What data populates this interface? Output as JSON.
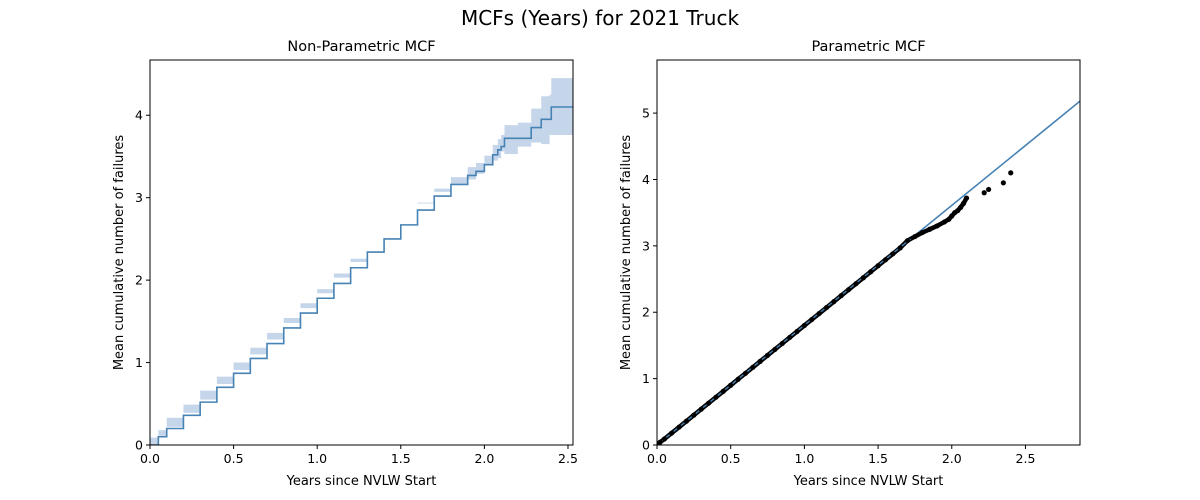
{
  "suptitle": "MCFs (Years) for 2021 Truck",
  "colors": {
    "line": "#4682b4",
    "band": "#c6d6ea",
    "points": "#000000"
  },
  "chart_data": [
    {
      "type": "line",
      "title": "Non-Parametric MCF",
      "xlabel": "Years since NVLW Start",
      "ylabel": "Mean cumulative number of failures",
      "xlim": [
        0,
        2.53
      ],
      "ylim": [
        0,
        4.67
      ],
      "xticks": [
        0.0,
        0.5,
        1.0,
        1.5,
        2.0,
        2.5
      ],
      "xtick_labels": [
        "0.0",
        "0.5",
        "1.0",
        "1.5",
        "2.0",
        "2.5"
      ],
      "yticks": [
        0,
        1,
        2,
        3,
        4
      ],
      "ytick_labels": [
        "0",
        "1",
        "2",
        "3",
        "4"
      ],
      "series": [
        {
          "kind": "step-with-confidence-band",
          "x": [
            0.0,
            0.05,
            0.1,
            0.2,
            0.3,
            0.4,
            0.5,
            0.6,
            0.7,
            0.8,
            0.9,
            1.0,
            1.1,
            1.2,
            1.3,
            1.4,
            1.5,
            1.6,
            1.7,
            1.8,
            1.9,
            1.95,
            2.0,
            2.05,
            2.08,
            2.1,
            2.12,
            2.2,
            2.28,
            2.34,
            2.39,
            2.4,
            2.53
          ],
          "y": [
            0.0,
            0.1,
            0.2,
            0.36,
            0.52,
            0.7,
            0.87,
            1.05,
            1.23,
            1.42,
            1.6,
            1.78,
            1.96,
            2.15,
            2.34,
            2.5,
            2.67,
            2.85,
            3.02,
            3.16,
            3.27,
            3.32,
            3.4,
            3.52,
            3.58,
            3.62,
            3.72,
            3.72,
            3.85,
            3.95,
            3.95,
            4.1,
            4.1
          ],
          "lower": [
            0.0,
            0.09,
            0.18,
            0.33,
            0.49,
            0.66,
            0.83,
            1.0,
            1.18,
            1.36,
            1.54,
            1.72,
            1.89,
            2.08,
            2.26,
            2.42,
            2.58,
            2.76,
            2.93,
            3.07,
            3.17,
            3.22,
            3.29,
            3.4,
            3.45,
            3.48,
            3.56,
            3.53,
            3.62,
            3.67,
            3.65,
            3.76,
            3.76
          ],
          "upper": [
            0.0,
            0.11,
            0.22,
            0.39,
            0.55,
            0.74,
            0.91,
            1.1,
            1.28,
            1.48,
            1.66,
            1.84,
            2.03,
            2.22,
            2.42,
            2.58,
            2.76,
            2.94,
            3.11,
            3.25,
            3.37,
            3.42,
            3.51,
            3.64,
            3.71,
            3.76,
            3.88,
            3.91,
            4.08,
            4.23,
            4.25,
            4.45,
            4.45
          ]
        }
      ]
    },
    {
      "type": "scatter",
      "title": "Parametric MCF",
      "xlabel": "Years since NVLW Start",
      "ylabel": "Mean cumulative number of failures",
      "xlim": [
        0,
        2.87
      ],
      "ylim": [
        0,
        5.8
      ],
      "xticks": [
        0.0,
        0.5,
        1.0,
        1.5,
        2.0,
        2.5
      ],
      "xtick_labels": [
        "0.0",
        "0.5",
        "1.0",
        "1.5",
        "2.0",
        "2.5"
      ],
      "yticks": [
        0,
        1,
        2,
        3,
        4,
        5
      ],
      "ytick_labels": [
        "0",
        "1",
        "2",
        "3",
        "4",
        "5"
      ],
      "series": [
        {
          "kind": "fitted-line",
          "x": [
            0.0,
            2.87
          ],
          "y": [
            0.0,
            5.18
          ]
        },
        {
          "kind": "points",
          "x": [
            0.0,
            0.02,
            0.05,
            0.1,
            0.15,
            0.2,
            0.25,
            0.3,
            0.35,
            0.4,
            0.45,
            0.5,
            0.55,
            0.6,
            0.65,
            0.7,
            0.75,
            0.8,
            0.85,
            0.9,
            0.95,
            1.0,
            1.05,
            1.1,
            1.15,
            1.2,
            1.25,
            1.3,
            1.35,
            1.4,
            1.45,
            1.5,
            1.55,
            1.6,
            1.65,
            1.7,
            1.75,
            1.8,
            1.85,
            1.9,
            1.95,
            1.98,
            2.0,
            2.02,
            2.04,
            2.06,
            2.08,
            2.1,
            2.22,
            2.25,
            2.35,
            2.4
          ],
          "y": [
            0.0,
            0.04,
            0.09,
            0.18,
            0.27,
            0.36,
            0.45,
            0.54,
            0.63,
            0.72,
            0.81,
            0.9,
            0.99,
            1.08,
            1.17,
            1.26,
            1.35,
            1.44,
            1.53,
            1.62,
            1.71,
            1.8,
            1.89,
            1.98,
            2.07,
            2.16,
            2.25,
            2.34,
            2.43,
            2.52,
            2.61,
            2.7,
            2.79,
            2.88,
            2.97,
            3.08,
            3.14,
            3.2,
            3.25,
            3.3,
            3.36,
            3.4,
            3.45,
            3.5,
            3.53,
            3.58,
            3.64,
            3.72,
            3.8,
            3.85,
            3.95,
            4.1
          ]
        }
      ]
    }
  ]
}
